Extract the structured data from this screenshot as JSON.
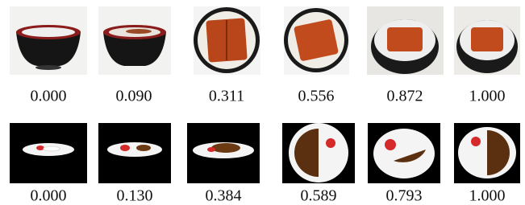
{
  "rows": [
    {
      "labels": [
        "0.000",
        "0.090",
        "0.311",
        "0.556",
        "0.872",
        "1.000"
      ]
    },
    {
      "labels": [
        "0.000",
        "0.130",
        "0.384",
        "0.589",
        "0.793",
        "1.000"
      ]
    }
  ]
}
